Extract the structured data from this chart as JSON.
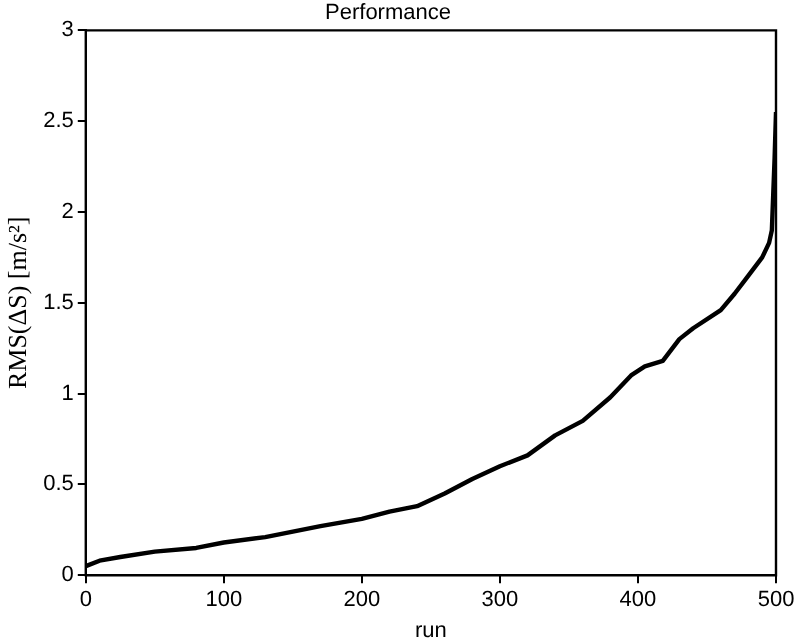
{
  "chart_data": {
    "type": "line",
    "title": "Performance",
    "xlabel": "run",
    "ylabel": "RMS(ΔS) [m/s²]",
    "x": [
      0,
      10,
      25,
      50,
      80,
      100,
      130,
      150,
      170,
      200,
      220,
      240,
      260,
      280,
      300,
      320,
      340,
      360,
      380,
      395,
      405,
      418,
      430,
      440,
      460,
      470,
      480,
      490,
      495,
      497,
      498,
      499,
      500
    ],
    "series": [
      {
        "color": "#000000",
        "values": [
          0.05,
          0.08,
          0.1,
          0.13,
          0.15,
          0.18,
          0.21,
          0.24,
          0.27,
          0.31,
          0.35,
          0.38,
          0.45,
          0.53,
          0.6,
          0.66,
          0.77,
          0.85,
          0.98,
          1.1,
          1.15,
          1.18,
          1.3,
          1.36,
          1.46,
          1.55,
          1.65,
          1.75,
          1.83,
          1.9,
          2.1,
          2.3,
          2.55
        ]
      }
    ],
    "xlim": [
      0,
      500
    ],
    "xticks": [
      0,
      100,
      200,
      300,
      400,
      500
    ],
    "ylim": [
      0,
      3
    ],
    "yticks": [
      0,
      0.5,
      1,
      1.5,
      2,
      2.5,
      3
    ],
    "grid": false,
    "legend": false,
    "marker": "none",
    "line_style": "solid"
  }
}
